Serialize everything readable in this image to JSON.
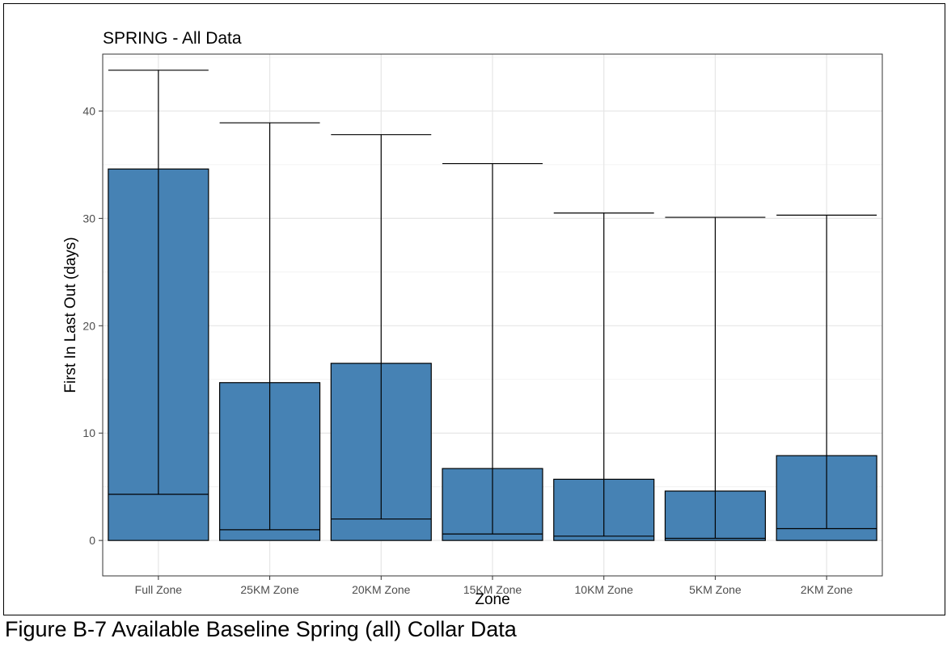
{
  "caption": "Figure B-7 Available Baseline Spring (all) Collar Data",
  "chart_data": {
    "type": "bar",
    "title": "SPRING - All Data",
    "xlabel": "Zone",
    "ylabel": "First In Last Out (days)",
    "categories": [
      "Full Zone",
      "25KM Zone",
      "20KM Zone",
      "15KM Zone",
      "10KM Zone",
      "5KM Zone",
      "2KM Zone"
    ],
    "values": [
      34.6,
      14.7,
      16.5,
      6.7,
      5.7,
      4.6,
      7.9
    ],
    "error_low": [
      4.3,
      1.0,
      2.0,
      0.6,
      0.4,
      0.2,
      1.1
    ],
    "error_high": [
      43.8,
      38.9,
      37.8,
      35.1,
      30.5,
      30.1,
      30.3
    ],
    "ylim": [
      -3.3,
      45.3
    ],
    "yticks": [
      0,
      10,
      20,
      30,
      40
    ],
    "grid": true,
    "legend": "none",
    "bar_color": "#4682b4"
  }
}
